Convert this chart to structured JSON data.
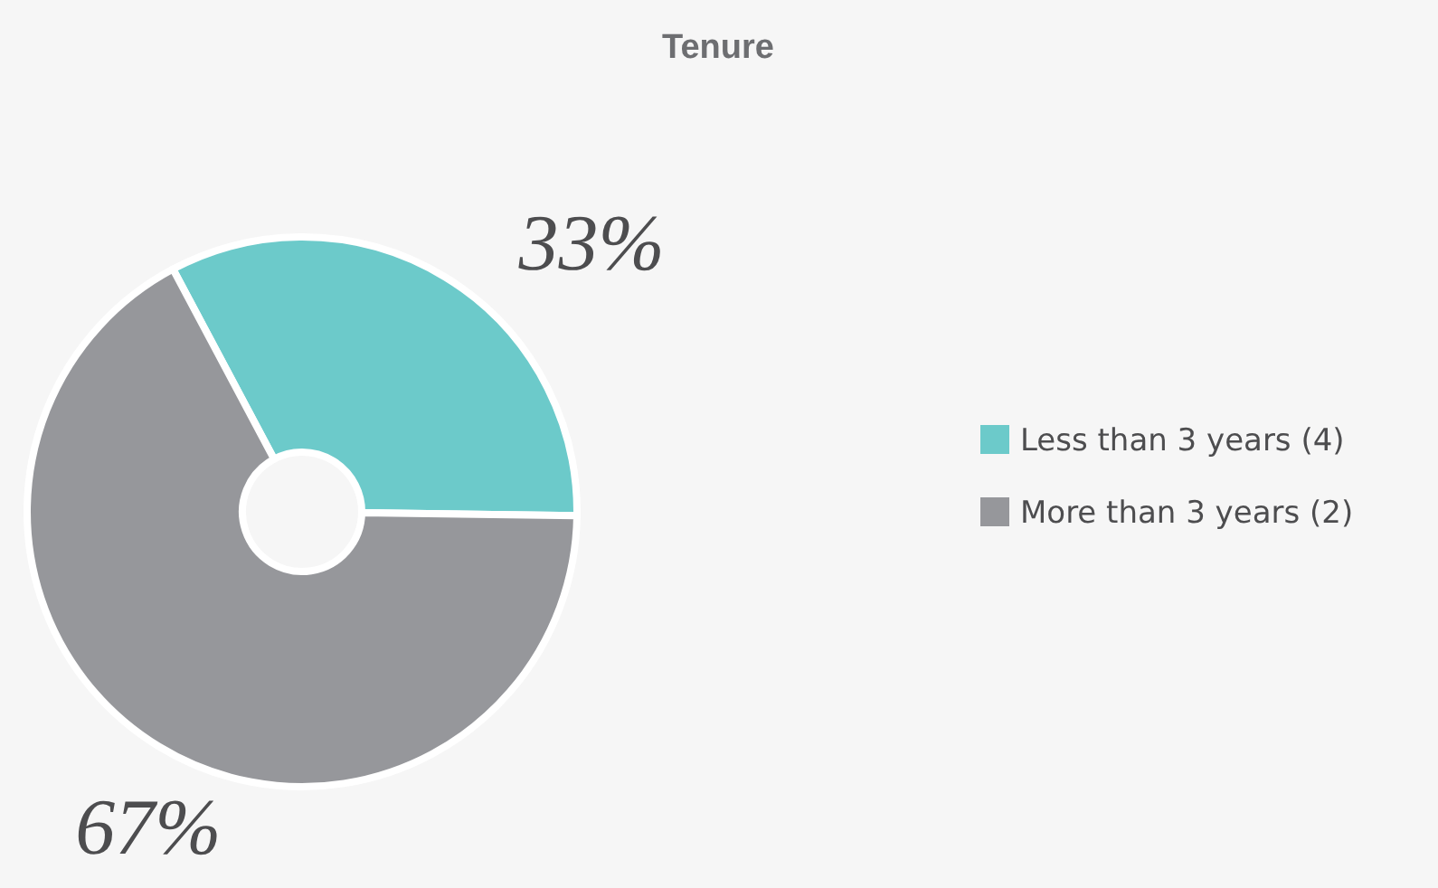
{
  "chart_data": {
    "type": "donut",
    "title": "Tenure",
    "categories": [
      "Less than 3 years (4)",
      "More than 3 years (2)"
    ],
    "values": [
      33,
      67
    ],
    "colors": [
      "#6ccaca",
      "#96979b"
    ],
    "value_labels": [
      "33%",
      "67%"
    ],
    "legend": "right"
  }
}
